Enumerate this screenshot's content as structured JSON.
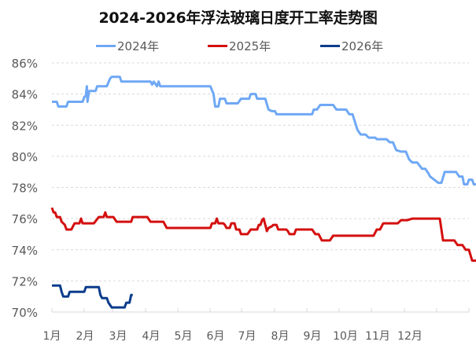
{
  "title": "2024-2026年浮法玻璃日度开工率走势图",
  "legend": [
    {
      "label": "2024年",
      "color": "#6FA8F5"
    },
    {
      "label": "2025年",
      "color": "#D40F0F"
    },
    {
      "label": "2026年",
      "color": "#0B3C8C"
    }
  ],
  "chart_data": {
    "type": "line",
    "title": "2024-2026年浮法玻璃日度开工率走势图",
    "xlabel": "",
    "ylabel": "",
    "x_ticks": [
      "1月",
      "2月",
      "3月",
      "4月",
      "5月",
      "6月",
      "7月",
      "8月",
      "9月",
      "10月",
      "11月",
      "12月"
    ],
    "y_ticks": [
      "70%",
      "72%",
      "74%",
      "76%",
      "78%",
      "80%",
      "82%",
      "84%",
      "86%"
    ],
    "ylim": [
      70,
      86
    ],
    "grid": "horizontal dashed",
    "legend_position": "top",
    "x_unit": "month (fractional, 1.0 = start of Jan)",
    "series": [
      {
        "name": "2024年",
        "color": "#6FA8F5",
        "points": [
          [
            1.0,
            83.5
          ],
          [
            1.15,
            83.5
          ],
          [
            1.2,
            83.2
          ],
          [
            1.45,
            83.2
          ],
          [
            1.5,
            83.5
          ],
          [
            1.95,
            83.5
          ],
          [
            2.0,
            83.8
          ],
          [
            2.05,
            83.9
          ],
          [
            2.08,
            84.5
          ],
          [
            2.1,
            83.5
          ],
          [
            2.15,
            84.2
          ],
          [
            2.35,
            84.2
          ],
          [
            2.4,
            84.5
          ],
          [
            2.7,
            84.5
          ],
          [
            2.8,
            85.0
          ],
          [
            2.85,
            85.1
          ],
          [
            3.1,
            85.1
          ],
          [
            3.15,
            84.8
          ],
          [
            4.05,
            84.8
          ],
          [
            4.1,
            84.6
          ],
          [
            4.15,
            84.8
          ],
          [
            4.25,
            84.5
          ],
          [
            4.3,
            84.8
          ],
          [
            4.35,
            84.5
          ],
          [
            5.9,
            84.5
          ],
          [
            6.0,
            84.0
          ],
          [
            6.05,
            83.2
          ],
          [
            6.15,
            83.2
          ],
          [
            6.2,
            83.7
          ],
          [
            6.35,
            83.7
          ],
          [
            6.4,
            83.4
          ],
          [
            6.75,
            83.4
          ],
          [
            6.85,
            83.7
          ],
          [
            7.1,
            83.7
          ],
          [
            7.15,
            84.0
          ],
          [
            7.3,
            84.0
          ],
          [
            7.35,
            83.7
          ],
          [
            7.6,
            83.7
          ],
          [
            7.7,
            83.0
          ],
          [
            7.8,
            82.9
          ],
          [
            7.9,
            82.9
          ],
          [
            7.95,
            82.7
          ],
          [
            9.05,
            82.7
          ],
          [
            9.1,
            83.0
          ],
          [
            9.2,
            83.0
          ],
          [
            9.3,
            83.3
          ],
          [
            9.7,
            83.3
          ],
          [
            9.8,
            83.0
          ],
          [
            10.1,
            83.0
          ],
          [
            10.2,
            82.7
          ],
          [
            10.3,
            82.7
          ],
          [
            10.45,
            81.7
          ],
          [
            10.55,
            81.4
          ],
          [
            10.7,
            81.4
          ],
          [
            10.8,
            81.2
          ],
          [
            11.0,
            81.2
          ],
          [
            11.05,
            81.1
          ],
          [
            11.35,
            81.1
          ],
          [
            11.45,
            80.9
          ],
          [
            11.55,
            80.9
          ],
          [
            11.65,
            80.4
          ],
          [
            11.8,
            80.3
          ],
          [
            11.95,
            80.3
          ],
          [
            12.05,
            79.8
          ],
          [
            12.15,
            79.6
          ],
          [
            12.3,
            79.6
          ],
          [
            12.45,
            79.2
          ],
          [
            12.55,
            79.2
          ],
          [
            12.65,
            78.9
          ],
          [
            12.7,
            78.7
          ],
          [
            12.95,
            78.3
          ],
          [
            13.05,
            78.3
          ],
          [
            13.15,
            79.0
          ],
          [
            13.5,
            79.0
          ],
          [
            13.6,
            78.7
          ],
          [
            13.7,
            78.7
          ],
          [
            13.75,
            78.2
          ],
          [
            13.85,
            78.2
          ],
          [
            13.9,
            78.5
          ],
          [
            14.0,
            78.5
          ],
          [
            14.05,
            78.2
          ],
          [
            14.25,
            78.2
          ],
          [
            14.3,
            78.5
          ],
          [
            14.45,
            78.5
          ],
          [
            14.55,
            78.2
          ],
          [
            14.65,
            78.2
          ],
          [
            14.75,
            77.6
          ],
          [
            14.8,
            77.4
          ],
          [
            14.9,
            76.9
          ],
          [
            15.0,
            76.9
          ]
        ]
      },
      {
        "name": "2025年",
        "color": "#D40F0F",
        "points": [
          [
            1.0,
            76.7
          ],
          [
            1.05,
            76.4
          ],
          [
            1.1,
            76.4
          ],
          [
            1.15,
            76.1
          ],
          [
            1.25,
            76.1
          ],
          [
            1.3,
            75.8
          ],
          [
            1.4,
            75.6
          ],
          [
            1.45,
            75.3
          ],
          [
            1.6,
            75.3
          ],
          [
            1.7,
            75.7
          ],
          [
            1.85,
            75.7
          ],
          [
            1.9,
            76.0
          ],
          [
            1.95,
            75.7
          ],
          [
            2.3,
            75.7
          ],
          [
            2.45,
            76.1
          ],
          [
            2.6,
            76.1
          ],
          [
            2.65,
            76.4
          ],
          [
            2.7,
            76.1
          ],
          [
            2.9,
            76.1
          ],
          [
            3.0,
            75.8
          ],
          [
            3.45,
            75.8
          ],
          [
            3.5,
            76.1
          ],
          [
            3.95,
            76.1
          ],
          [
            4.05,
            75.8
          ],
          [
            4.45,
            75.8
          ],
          [
            4.55,
            75.4
          ],
          [
            5.9,
            75.4
          ],
          [
            5.95,
            75.7
          ],
          [
            6.05,
            75.7
          ],
          [
            6.1,
            76.0
          ],
          [
            6.15,
            75.7
          ],
          [
            6.3,
            75.7
          ],
          [
            6.35,
            75.6
          ],
          [
            6.4,
            75.4
          ],
          [
            6.5,
            75.4
          ],
          [
            6.55,
            75.7
          ],
          [
            6.65,
            75.7
          ],
          [
            6.7,
            75.3
          ],
          [
            6.8,
            75.3
          ],
          [
            6.85,
            75.0
          ],
          [
            7.05,
            75.0
          ],
          [
            7.15,
            75.3
          ],
          [
            7.35,
            75.3
          ],
          [
            7.4,
            75.6
          ],
          [
            7.45,
            75.6
          ],
          [
            7.5,
            75.9
          ],
          [
            7.55,
            76.0
          ],
          [
            7.6,
            75.6
          ],
          [
            7.65,
            75.2
          ],
          [
            7.7,
            75.4
          ],
          [
            7.8,
            75.5
          ],
          [
            7.85,
            75.6
          ],
          [
            7.95,
            75.6
          ],
          [
            8.0,
            75.3
          ],
          [
            8.25,
            75.3
          ],
          [
            8.3,
            75.2
          ],
          [
            8.35,
            75.0
          ],
          [
            8.5,
            75.0
          ],
          [
            8.55,
            75.3
          ],
          [
            9.05,
            75.3
          ],
          [
            9.15,
            75.0
          ],
          [
            9.25,
            75.0
          ],
          [
            9.35,
            74.6
          ],
          [
            9.6,
            74.6
          ],
          [
            9.7,
            74.9
          ],
          [
            9.85,
            74.9
          ],
          [
            10.95,
            74.9
          ],
          [
            11.05,
            75.3
          ],
          [
            11.15,
            75.3
          ],
          [
            11.25,
            75.7
          ],
          [
            11.7,
            75.7
          ],
          [
            11.8,
            75.9
          ],
          [
            12.0,
            75.9
          ],
          [
            12.15,
            76.0
          ],
          [
            12.9,
            76.0
          ],
          [
            13.0,
            76.0
          ],
          [
            13.1,
            74.6
          ],
          [
            13.45,
            74.6
          ],
          [
            13.55,
            74.3
          ],
          [
            13.7,
            74.3
          ],
          [
            13.8,
            74.0
          ],
          [
            13.9,
            74.0
          ],
          [
            14.0,
            73.3
          ],
          [
            14.2,
            73.3
          ],
          [
            14.3,
            73.6
          ],
          [
            14.85,
            73.6
          ],
          [
            14.9,
            73.2
          ],
          [
            15.05,
            73.2
          ],
          [
            15.15,
            72.0
          ]
        ]
      },
      {
        "name": "2026年",
        "color": "#0B3C8C",
        "points": [
          [
            1.0,
            71.7
          ],
          [
            1.25,
            71.7
          ],
          [
            1.3,
            71.3
          ],
          [
            1.35,
            71.0
          ],
          [
            1.5,
            71.0
          ],
          [
            1.55,
            71.3
          ],
          [
            1.8,
            71.3
          ],
          [
            2.0,
            71.3
          ],
          [
            2.05,
            71.6
          ],
          [
            2.45,
            71.6
          ],
          [
            2.5,
            71.1
          ],
          [
            2.55,
            70.9
          ],
          [
            2.7,
            70.9
          ],
          [
            2.75,
            70.6
          ],
          [
            2.85,
            70.3
          ],
          [
            3.25,
            70.3
          ],
          [
            3.3,
            70.6
          ],
          [
            3.4,
            70.6
          ],
          [
            3.45,
            71.1
          ],
          [
            3.5,
            71.1
          ]
        ]
      }
    ]
  }
}
